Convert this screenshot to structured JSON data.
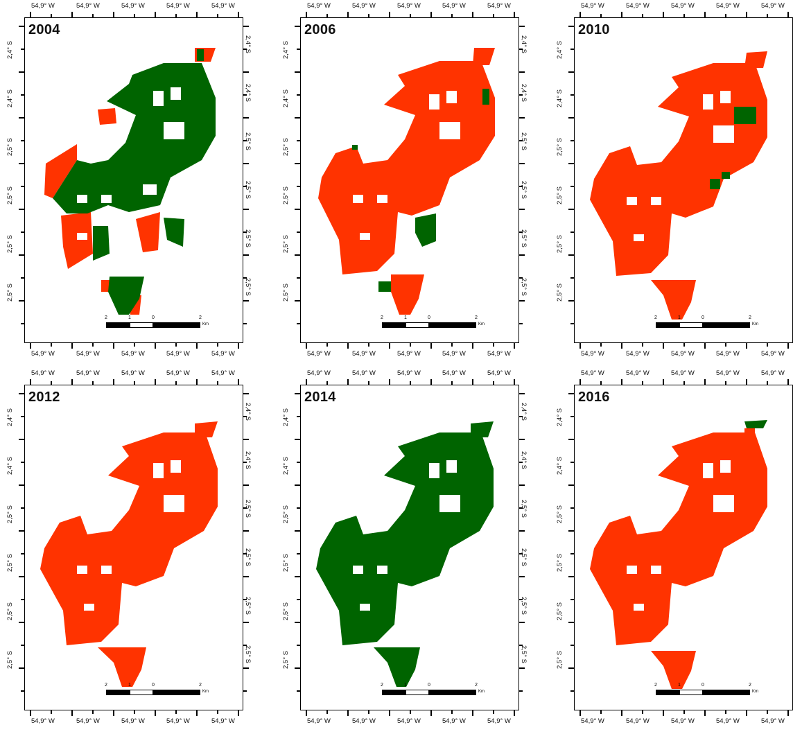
{
  "colors": {
    "red": "#ff3300",
    "green": "#006400"
  },
  "labels": {
    "lon": "54,9° W",
    "lat_a": "2,4° S",
    "lat_b": "2,5° S"
  },
  "scale": {
    "ticks": [
      "2",
      "1",
      "0",
      "2"
    ],
    "unit": "Km"
  },
  "panels": [
    {
      "year": "2004"
    },
    {
      "year": "2006"
    },
    {
      "year": "2010"
    },
    {
      "year": "2012"
    },
    {
      "year": "2014"
    },
    {
      "year": "2016"
    }
  ]
}
